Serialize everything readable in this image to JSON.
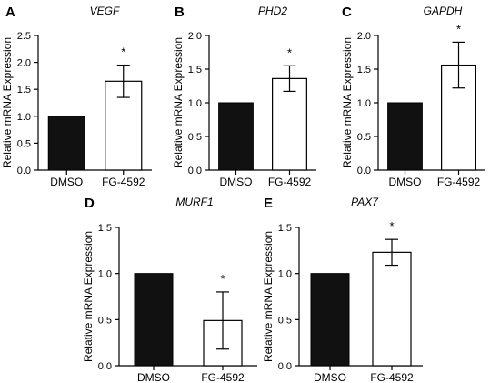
{
  "colors": {
    "dmso_bar": "#111111",
    "fg_bar": "#ffffff",
    "axis": "#000000"
  },
  "chart_data": [
    {
      "panel": "A",
      "type": "bar",
      "title": "VEGF",
      "categories": [
        "DMSO",
        "FG-4592"
      ],
      "values": [
        1.0,
        1.65
      ],
      "error": [
        0,
        0.3
      ],
      "significance": [
        "",
        "*"
      ],
      "ylabel": "Relative mRNA Expression",
      "ylim": [
        0,
        2.5
      ],
      "yticks": [
        0,
        0.5,
        1.0,
        1.5,
        2.0,
        2.5
      ],
      "ytick_labels": [
        "0.0",
        "0.5",
        "1.0",
        "1.5",
        "2.0",
        "2.5"
      ],
      "grid": false
    },
    {
      "panel": "B",
      "type": "bar",
      "title": "PHD2",
      "categories": [
        "DMSO",
        "FG-4592"
      ],
      "values": [
        1.0,
        1.36
      ],
      "error": [
        0,
        0.19
      ],
      "significance": [
        "",
        "*"
      ],
      "ylabel": "Relative mRNA Expression",
      "ylim": [
        0,
        2.0
      ],
      "yticks": [
        0,
        0.5,
        1.0,
        1.5,
        2.0
      ],
      "ytick_labels": [
        "0.0",
        "0.5",
        "1.0",
        "1.5",
        "2.0"
      ],
      "grid": false
    },
    {
      "panel": "C",
      "type": "bar",
      "title": "GAPDH",
      "categories": [
        "DMSO",
        "FG-4592"
      ],
      "values": [
        1.0,
        1.56
      ],
      "error": [
        0,
        0.34
      ],
      "significance": [
        "",
        "*"
      ],
      "ylabel": "Relative mRNA Expression",
      "ylim": [
        0,
        2.0
      ],
      "yticks": [
        0,
        0.5,
        1.0,
        1.5,
        2.0
      ],
      "ytick_labels": [
        "0.0",
        "0.5",
        "1.0",
        "1.5",
        "2.0"
      ],
      "grid": false
    },
    {
      "panel": "D",
      "type": "bar",
      "title": "MURF1",
      "categories": [
        "DMSO",
        "FG-4592"
      ],
      "values": [
        1.0,
        0.49
      ],
      "error": [
        0,
        0.31
      ],
      "significance": [
        "",
        "*"
      ],
      "ylabel": "Relative mRNA Expression",
      "ylim": [
        0,
        1.5
      ],
      "yticks": [
        0,
        0.5,
        1.0,
        1.5
      ],
      "ytick_labels": [
        "0.0",
        "0.5",
        "1.0",
        "1.5"
      ],
      "grid": false
    },
    {
      "panel": "E",
      "type": "bar",
      "title": "PAX7",
      "categories": [
        "DMSO",
        "FG-4592"
      ],
      "values": [
        1.0,
        1.23
      ],
      "error": [
        0,
        0.14
      ],
      "significance": [
        "",
        "*"
      ],
      "ylabel": "Relative mRNA Expression",
      "ylim": [
        0,
        1.5
      ],
      "yticks": [
        0,
        0.5,
        1.0,
        1.5
      ],
      "ytick_labels": [
        "0.0",
        "0.5",
        "1.0",
        "1.5"
      ],
      "grid": false
    }
  ]
}
